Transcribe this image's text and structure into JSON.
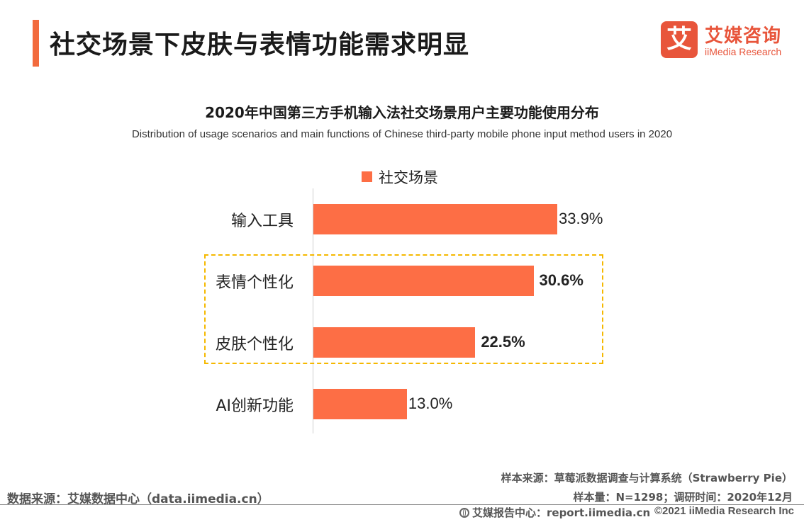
{
  "header": {
    "title": "社交场景下皮肤与表情功能需求明显"
  },
  "logo": {
    "mark": "艾",
    "name_cn": "艾媒咨询",
    "name_en": "iiMedia Research"
  },
  "colors": {
    "accent": "#f26a3d",
    "bar": "#fd6e45",
    "highlight_border": "#f5b800"
  },
  "chart_data": {
    "type": "bar",
    "orientation": "horizontal",
    "title": "2020年中国第三方手机输入法社交场景用户主要功能使用分布",
    "subtitle": "Distribution of usage scenarios and main functions of Chinese third-party mobile phone input method users in 2020",
    "categories": [
      "输入工具",
      "表情个性化",
      "皮肤个性化",
      "AI创新功能"
    ],
    "series": [
      {
        "name": "社交场景",
        "values": [
          33.9,
          30.6,
          22.5,
          13.0
        ],
        "labels": [
          "33.9%",
          "30.6%",
          "22.5%",
          "13.0%"
        ]
      }
    ],
    "xlim": [
      0,
      40
    ],
    "unit": "%",
    "legend_position": "top",
    "grid": false,
    "highlighted_categories": [
      "表情个性化",
      "皮肤个性化"
    ]
  },
  "footer": {
    "sample_source": "样本来源：草莓派数据调查与计算系统（Strawberry Pie）",
    "data_source": "数据来源：艾媒数据中心（data.iimedia.cn）",
    "sample_size": "样本量：N=1298；调研时间：2020年12月",
    "report_center": "艾媒报告中心：report.iimedia.cn",
    "copyright": "©2021  iiMedia Research  Inc"
  }
}
